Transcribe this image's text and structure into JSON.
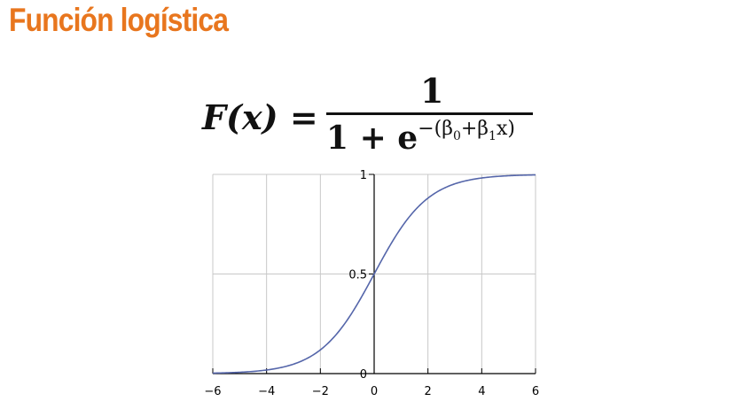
{
  "slide": {
    "title": "Función logística"
  },
  "formula": {
    "lhs": "F(x) =",
    "numerator": "1",
    "denominator_base": "1 + e",
    "exponent": "−(β",
    "sub0": "0",
    "exponent_mid": "+β",
    "sub1": "1",
    "exponent_end": "x)"
  },
  "chart_data": {
    "type": "line",
    "x_ticks": [
      "−6",
      "−4",
      "−2",
      "0",
      "2",
      "4",
      "6"
    ],
    "y_ticks": [
      "0",
      "0.5",
      "1"
    ],
    "xlim": [
      -6,
      6
    ],
    "ylim": [
      0,
      1
    ],
    "grid": true,
    "series": [
      {
        "function": "1 / (1 + e^(-x))",
        "color": "#5566aa"
      }
    ]
  }
}
